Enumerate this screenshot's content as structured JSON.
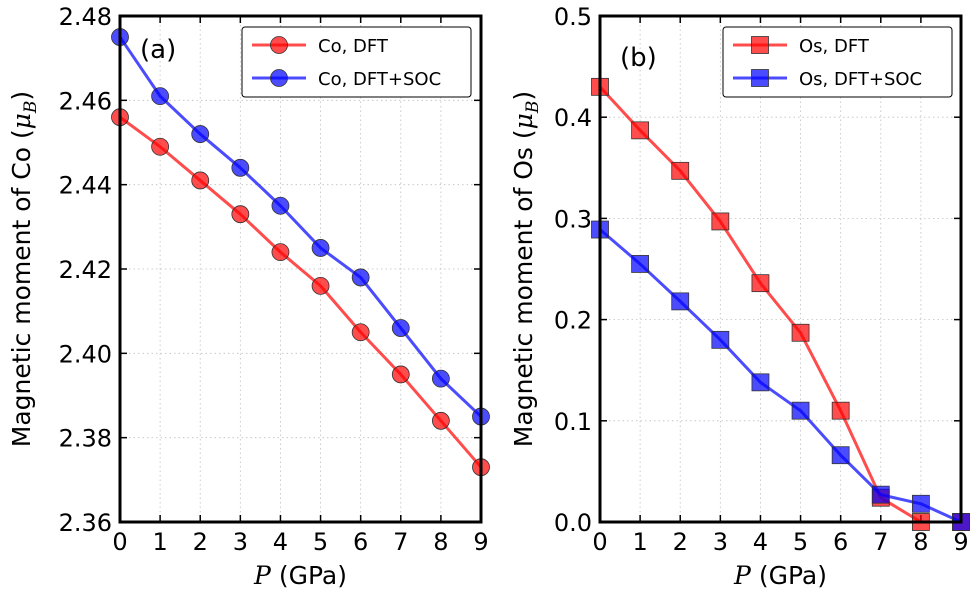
{
  "chart_data": [
    {
      "type": "line",
      "panel_label": "(a)",
      "xlabel_italic": "P",
      "xlabel_unit": "(GPa)",
      "ylabel_text": "Magnetic moment of Co (",
      "ylabel_mu": "μ",
      "ylabel_sub": "B",
      "ylabel_close": ")",
      "xlim": [
        0,
        9
      ],
      "ylim": [
        2.36,
        2.48
      ],
      "x_ticks": [
        "0",
        "1",
        "2",
        "3",
        "4",
        "5",
        "6",
        "7",
        "8",
        "9"
      ],
      "y_ticks": [
        "2.36",
        "2.38",
        "2.40",
        "2.42",
        "2.44",
        "2.46",
        "2.48"
      ],
      "y_tick_values": [
        2.36,
        2.38,
        2.4,
        2.42,
        2.44,
        2.46,
        2.48
      ],
      "grid": true,
      "legend_position": "top-right",
      "marker": "circle",
      "x": [
        0,
        1,
        2,
        3,
        4,
        5,
        6,
        7,
        8,
        9
      ],
      "series": [
        {
          "name": "Co, DFT",
          "color": "#ff0000",
          "values": [
            2.456,
            2.449,
            2.441,
            2.433,
            2.424,
            2.416,
            2.405,
            2.395,
            2.384,
            2.373
          ]
        },
        {
          "name": "Co, DFT+SOC",
          "color": "#0000ff",
          "values": [
            2.475,
            2.461,
            2.452,
            2.444,
            2.435,
            2.425,
            2.418,
            2.406,
            2.394,
            2.385
          ]
        }
      ]
    },
    {
      "type": "line",
      "panel_label": "(b)",
      "xlabel_italic": "P",
      "xlabel_unit": "(GPa)",
      "ylabel_text": "Magnetic moment of Os (",
      "ylabel_mu": "μ",
      "ylabel_sub": "B",
      "ylabel_close": ")",
      "xlim": [
        0,
        9
      ],
      "ylim": [
        0.0,
        0.5
      ],
      "x_ticks": [
        "0",
        "1",
        "2",
        "3",
        "4",
        "5",
        "6",
        "7",
        "8",
        "9"
      ],
      "y_ticks": [
        "0.0",
        "0.1",
        "0.2",
        "0.3",
        "0.4",
        "0.5"
      ],
      "y_tick_values": [
        0.0,
        0.1,
        0.2,
        0.3,
        0.4,
        0.5
      ],
      "grid": true,
      "legend_position": "top-right",
      "marker": "square",
      "x": [
        0,
        1,
        2,
        3,
        4,
        5,
        6,
        7,
        8,
        9
      ],
      "series": [
        {
          "name": "Os, DFT",
          "color": "#ff0000",
          "values": [
            0.43,
            0.387,
            0.347,
            0.297,
            0.236,
            0.187,
            0.11,
            0.024,
            0.0,
            0.0
          ]
        },
        {
          "name": "Os, DFT+SOC",
          "color": "#0000ff",
          "values": [
            0.289,
            0.255,
            0.218,
            0.18,
            0.138,
            0.11,
            0.066,
            0.027,
            0.018,
            0.0
          ]
        }
      ]
    }
  ]
}
